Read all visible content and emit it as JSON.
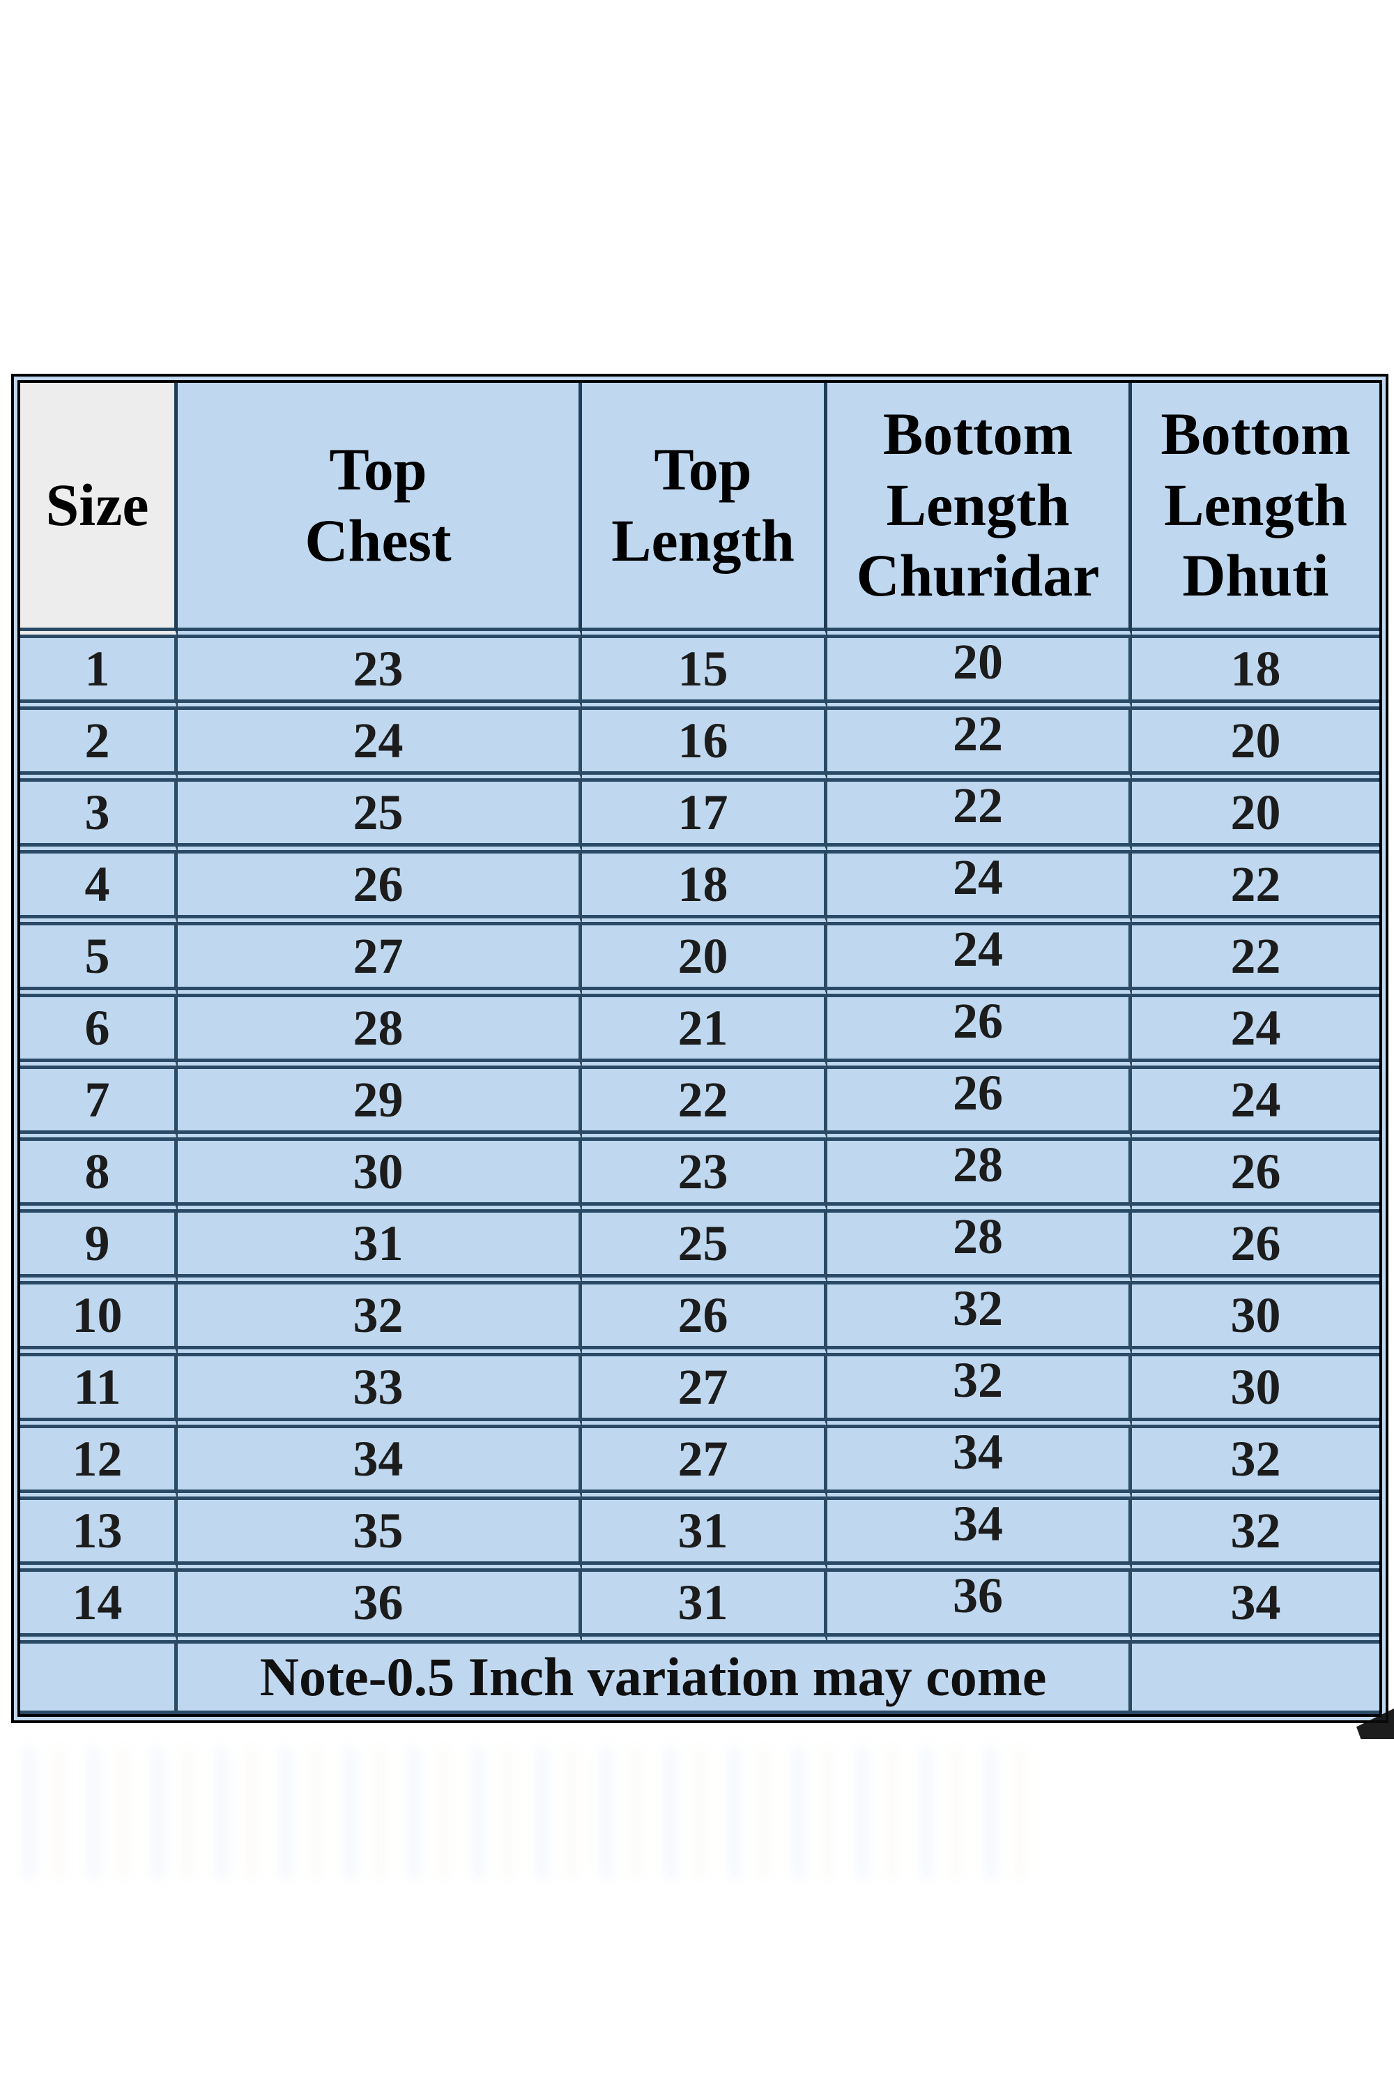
{
  "chart_data": {
    "type": "table",
    "columns": [
      "Size",
      "Top\nChest",
      "Top\nLength",
      "Bottom\nLength\nChuridar",
      "Bottom\nLength\nDhuti"
    ],
    "rows": [
      [
        1,
        23,
        15,
        20,
        18
      ],
      [
        2,
        24,
        16,
        22,
        20
      ],
      [
        3,
        25,
        17,
        22,
        20
      ],
      [
        4,
        26,
        18,
        24,
        22
      ],
      [
        5,
        27,
        20,
        24,
        22
      ],
      [
        6,
        28,
        21,
        26,
        24
      ],
      [
        7,
        29,
        22,
        26,
        24
      ],
      [
        8,
        30,
        23,
        28,
        26
      ],
      [
        9,
        31,
        25,
        28,
        26
      ],
      [
        10,
        32,
        26,
        32,
        30
      ],
      [
        11,
        33,
        27,
        32,
        30
      ],
      [
        12,
        34,
        27,
        34,
        32
      ],
      [
        13,
        35,
        31,
        34,
        32
      ],
      [
        14,
        36,
        31,
        36,
        34
      ]
    ],
    "note": "Note-0.5 Inch variation may come",
    "layout": {
      "grid": true,
      "header_rows": 1,
      "note_row_span_columns": [
        "Top Chest",
        "Top Length",
        "Bottom Length Churidar"
      ]
    }
  },
  "colors": {
    "cell_blue": "#bfd8f0",
    "size_header_gray": "#ededed",
    "grid_line": "#2b4a66",
    "outer_border": "#000000",
    "text": "#1c1c1c"
  }
}
